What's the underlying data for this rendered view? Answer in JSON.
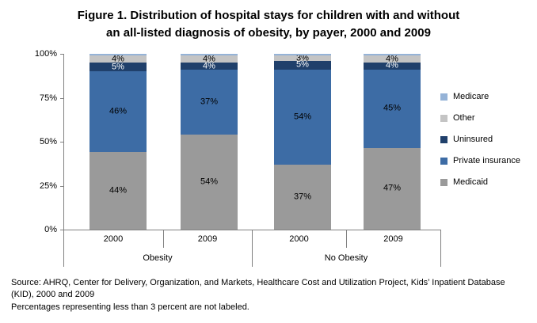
{
  "title": {
    "line1": "Figure 1. Distribution of hospital stays for children with and without",
    "line2": "an all-listed diagnosis of obesity, by payer, 2000 and 2009"
  },
  "chart_data": {
    "type": "bar",
    "stacked": true,
    "unit": "percent",
    "title": "Figure 1. Distribution of hospital stays for children with and without an all-listed diagnosis of obesity, by payer, 2000 and 2009",
    "y_ticks": [
      "0%",
      "25%",
      "50%",
      "75%",
      "100%"
    ],
    "ylim": [
      0,
      100
    ],
    "grid": false,
    "legend_position": "right",
    "legend_order": [
      "Medicare",
      "Other",
      "Uninsured",
      "Private insurance",
      "Medicaid"
    ],
    "groups": [
      {
        "label": "Obesity",
        "years": [
          "2000",
          "2009"
        ]
      },
      {
        "label": "No Obesity",
        "years": [
          "2000",
          "2009"
        ]
      }
    ],
    "categories": [
      "Obesity 2000",
      "Obesity 2009",
      "No Obesity 2000",
      "No Obesity 2009"
    ],
    "series": [
      {
        "name": "Medicaid",
        "color": "#9A9A9A",
        "label_color": "#000000",
        "values": [
          44,
          54,
          37,
          47
        ],
        "labels": [
          "44%",
          "54%",
          "37%",
          "47%"
        ]
      },
      {
        "name": "Private insurance",
        "color": "#3D6CA5",
        "label_color": "#000000",
        "values": [
          46,
          37,
          54,
          45
        ],
        "labels": [
          "46%",
          "37%",
          "54%",
          "45%"
        ]
      },
      {
        "name": "Uninsured",
        "color": "#20406B",
        "label_color": "#FFFFFF",
        "values": [
          5,
          4,
          5,
          4
        ],
        "labels": [
          "5%",
          "4%",
          "5%",
          "4%"
        ]
      },
      {
        "name": "Other",
        "color": "#C4C4C4",
        "label_color": "#000000",
        "values": [
          4,
          4,
          3,
          4
        ],
        "labels": [
          "4%",
          "4%",
          "3%",
          "4%"
        ]
      },
      {
        "name": "Medicare",
        "color": "#95B3D7",
        "label_color": "#000000",
        "values": [
          1,
          1,
          1,
          1
        ],
        "labels": [
          "",
          "",
          "",
          ""
        ]
      }
    ]
  },
  "footnotes": {
    "source": "Source: AHRQ, Center for Delivery, Organization, and Markets, Healthcare Cost and Utilization Project, Kids’ Inpatient Database (KID), 2000 and 2009",
    "note": "Percentages representing less than 3 percent are not labeled."
  }
}
